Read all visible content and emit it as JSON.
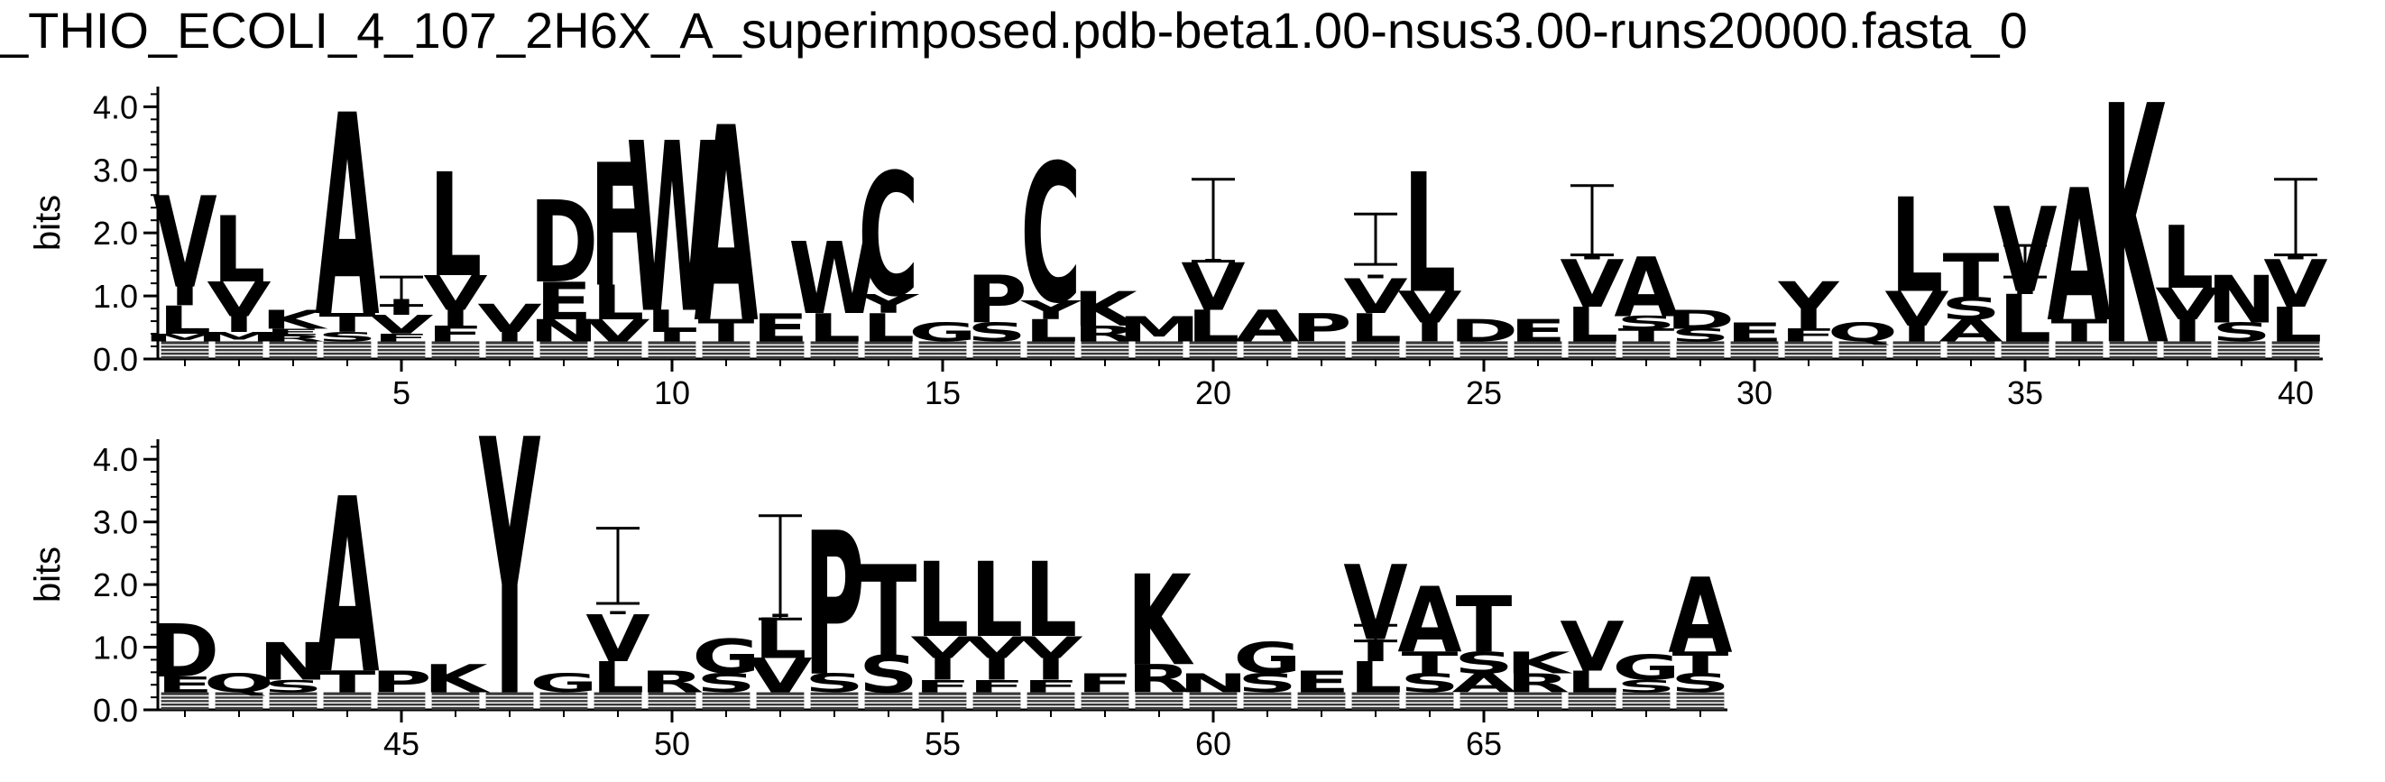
{
  "title": "_THIO_ECOLI_4_107_2H6X_A_superimposed.pdb-beta1.00-nsus3.00-runs20000.fasta_0",
  "chart_data": {
    "type": "sequence-logo",
    "title": "_THIO_ECOLI_4_107_2H6X_A_superimposed.pdb-beta1.00-nsus3.00-runs20000.fasta_0",
    "ylabel": "bits",
    "ylim": [
      0,
      4.32
    ],
    "yticks": [
      "0.0",
      "1.0",
      "2.0",
      "3.0",
      "4.0"
    ],
    "grid": false,
    "panels": [
      {
        "x_range": [
          0.5,
          40.5
        ],
        "xticks": [
          5,
          10,
          15,
          20,
          25,
          30,
          35,
          40
        ],
        "first_position": 1,
        "last_position": 40
      },
      {
        "x_range": [
          40.5,
          80.5
        ],
        "xticks": [
          45,
          50,
          55,
          60,
          65
        ],
        "first_position": 41,
        "last_position": 69
      }
    ],
    "positions": [
      {
        "pos": 1,
        "stack": [
          [
            "M",
            0.12
          ],
          [
            "L",
            0.45
          ],
          [
            "I",
            0.3
          ],
          [
            "V",
            1.45
          ]
        ],
        "error": null
      },
      {
        "pos": 2,
        "stack": [
          [
            "M",
            0.15
          ],
          [
            "I",
            0.25
          ],
          [
            "V",
            0.55
          ],
          [
            "L",
            1.05
          ]
        ],
        "error": null
      },
      {
        "pos": 3,
        "stack": [
          [
            "R",
            0.1
          ],
          [
            "E",
            0.1
          ],
          [
            "K",
            0.3
          ]
        ],
        "error": null
      },
      {
        "pos": 4,
        "stack": [
          [
            "S",
            0.15
          ],
          [
            "T",
            0.3
          ],
          [
            "A",
            3.2
          ]
        ],
        "error": null
      },
      {
        "pos": 5,
        "stack": [
          [
            "F",
            0.12
          ],
          [
            "V",
            0.3
          ],
          [
            "I",
            0.25
          ]
        ],
        "error": [
          0.85,
          1.3
        ]
      },
      {
        "pos": 6,
        "stack": [
          [
            "F",
            0.25
          ],
          [
            "I",
            0.25
          ],
          [
            "V",
            0.55
          ],
          [
            "L",
            1.65
          ]
        ],
        "error": null
      },
      {
        "pos": 7,
        "stack": [
          [
            "I",
            0.15
          ],
          [
            "V",
            0.45
          ]
        ],
        "error": null
      },
      {
        "pos": 8,
        "stack": [
          [
            "N",
            0.35
          ],
          [
            "E",
            0.6
          ],
          [
            "D",
            1.3
          ]
        ],
        "error": null
      },
      {
        "pos": 9,
        "stack": [
          [
            "V",
            0.35
          ],
          [
            "L",
            0.55
          ],
          [
            "F",
            1.95
          ]
        ],
        "error": null
      },
      {
        "pos": 10,
        "stack": [
          [
            "I",
            0.15
          ],
          [
            "L",
            0.35
          ],
          [
            "W",
            2.7
          ]
        ],
        "error": null
      },
      {
        "pos": 11,
        "stack": [
          [
            "T",
            0.35
          ],
          [
            "A",
            3.1
          ]
        ],
        "error": null
      },
      {
        "pos": 12,
        "stack": [
          [
            "E",
            0.45
          ]
        ],
        "error": null
      },
      {
        "pos": 13,
        "stack": [
          [
            "L",
            0.45
          ],
          [
            "W",
            1.15
          ]
        ],
        "error": null
      },
      {
        "pos": 14,
        "stack": [
          [
            "L",
            0.45
          ],
          [
            "Y",
            0.3
          ],
          [
            "C",
            1.95
          ]
        ],
        "error": null
      },
      {
        "pos": 15,
        "stack": [
          [
            "G",
            0.3
          ]
        ],
        "error": null
      },
      {
        "pos": 16,
        "stack": [
          [
            "S",
            0.3
          ],
          [
            "P",
            0.75
          ]
        ],
        "error": null
      },
      {
        "pos": 17,
        "stack": [
          [
            "L",
            0.35
          ],
          [
            "Y",
            0.3
          ],
          [
            "C",
            2.2
          ]
        ],
        "error": null
      },
      {
        "pos": 18,
        "stack": [
          [
            "R",
            0.25
          ],
          [
            "K",
            0.55
          ]
        ],
        "error": null
      },
      {
        "pos": 19,
        "stack": [
          [
            "M",
            0.4
          ]
        ],
        "error": null
      },
      {
        "pos": 20,
        "stack": [
          [
            "L",
            0.5
          ],
          [
            "V",
            0.75
          ],
          [
            "I",
            0.05
          ]
        ],
        "error": [
          1.55,
          2.85
        ]
      },
      {
        "pos": 21,
        "stack": [
          [
            "A",
            0.5
          ]
        ],
        "error": null
      },
      {
        "pos": 22,
        "stack": [
          [
            "P",
            0.45
          ]
        ],
        "error": null
      },
      {
        "pos": 23,
        "stack": [
          [
            "L",
            0.45
          ],
          [
            "V",
            0.55
          ],
          [
            "I",
            0.05
          ]
        ],
        "error": [
          1.5,
          2.3
        ]
      },
      {
        "pos": 24,
        "stack": [
          [
            "I",
            0.3
          ],
          [
            "V",
            0.5
          ],
          [
            "L",
            1.9
          ]
        ],
        "error": null
      },
      {
        "pos": 25,
        "stack": [
          [
            "D",
            0.35
          ]
        ],
        "error": null
      },
      {
        "pos": 26,
        "stack": [
          [
            "E",
            0.35
          ]
        ],
        "error": null
      },
      {
        "pos": 27,
        "stack": [
          [
            "L",
            0.55
          ],
          [
            "V",
            0.75
          ],
          [
            "I",
            0.05
          ]
        ],
        "error": [
          1.65,
          2.75
        ]
      },
      {
        "pos": 28,
        "stack": [
          [
            "T",
            0.2
          ],
          [
            "S",
            0.2
          ],
          [
            "A",
            0.95
          ]
        ],
        "error": null
      },
      {
        "pos": 29,
        "stack": [
          [
            "S",
            0.2
          ],
          [
            "D",
            0.3
          ]
        ],
        "error": null
      },
      {
        "pos": 30,
        "stack": [
          [
            "E",
            0.3
          ]
        ],
        "error": null
      },
      {
        "pos": 31,
        "stack": [
          [
            "F",
            0.2
          ],
          [
            "Y",
            0.75
          ]
        ],
        "error": null
      },
      {
        "pos": 32,
        "stack": [
          [
            "Q",
            0.3
          ]
        ],
        "error": null
      },
      {
        "pos": 33,
        "stack": [
          [
            "I",
            0.25
          ],
          [
            "V",
            0.55
          ],
          [
            "L",
            1.5
          ]
        ],
        "error": null
      },
      {
        "pos": 34,
        "stack": [
          [
            "A",
            0.35
          ],
          [
            "S",
            0.35
          ],
          [
            "T",
            0.7
          ]
        ],
        "error": null
      },
      {
        "pos": 35,
        "stack": [
          [
            "L",
            0.75
          ],
          [
            "I",
            0.05
          ],
          [
            "V",
            1.35
          ]
        ],
        "error": [
          1.3,
          1.8
        ]
      },
      {
        "pos": 36,
        "stack": [
          [
            "T",
            0.35
          ],
          [
            "A",
            2.1
          ]
        ],
        "error": null
      },
      {
        "pos": 37,
        "stack": [
          [
            "K",
            3.8
          ]
        ],
        "error": null
      },
      {
        "pos": 38,
        "stack": [
          [
            "I",
            0.35
          ],
          [
            "V",
            0.5
          ],
          [
            "L",
            1.0
          ]
        ],
        "error": null
      },
      {
        "pos": 39,
        "stack": [
          [
            "S",
            0.3
          ],
          [
            "N",
            0.75
          ]
        ],
        "error": null
      },
      {
        "pos": 40,
        "stack": [
          [
            "L",
            0.55
          ],
          [
            "V",
            0.75
          ],
          [
            "I",
            0.05
          ]
        ],
        "error": [
          1.65,
          2.85
        ]
      },
      {
        "pos": 41,
        "stack": [
          [
            "E",
            0.25
          ],
          [
            "D",
            0.85
          ]
        ],
        "error": null
      },
      {
        "pos": 42,
        "stack": [
          [
            "Q",
            0.3
          ]
        ],
        "error": null
      },
      {
        "pos": 43,
        "stack": [
          [
            "S",
            0.2
          ],
          [
            "N",
            0.6
          ]
        ],
        "error": null
      },
      {
        "pos": 44,
        "stack": [
          [
            "T",
            0.35
          ],
          [
            "A",
            2.8
          ]
        ],
        "error": null
      },
      {
        "pos": 45,
        "stack": [
          [
            "P",
            0.35
          ]
        ],
        "error": null
      },
      {
        "pos": 46,
        "stack": [
          [
            "K",
            0.45
          ]
        ],
        "error": null
      },
      {
        "pos": 47,
        "stack": [
          [
            "Y",
            4.1
          ]
        ],
        "error": null
      },
      {
        "pos": 48,
        "stack": [
          [
            "G",
            0.3
          ]
        ],
        "error": null
      },
      {
        "pos": 49,
        "stack": [
          [
            "L",
            0.5
          ],
          [
            "V",
            0.75
          ],
          [
            "I",
            0.05
          ]
        ],
        "error": [
          1.7,
          2.9
        ]
      },
      {
        "pos": 50,
        "stack": [
          [
            "R",
            0.35
          ]
        ],
        "error": null
      },
      {
        "pos": 51,
        "stack": [
          [
            "S",
            0.3
          ],
          [
            "G",
            0.55
          ]
        ],
        "error": null
      },
      {
        "pos": 52,
        "stack": [
          [
            "V",
            0.55
          ],
          [
            "L",
            0.65
          ],
          [
            "I",
            0.05
          ]
        ],
        "error": [
          1.45,
          3.1
        ]
      },
      {
        "pos": 53,
        "stack": [
          [
            "S",
            0.3
          ],
          [
            "P",
            2.3
          ]
        ],
        "error": null
      },
      {
        "pos": 54,
        "stack": [
          [
            "S",
            0.6
          ],
          [
            "T",
            1.45
          ]
        ],
        "error": null
      },
      {
        "pos": 55,
        "stack": [
          [
            "F",
            0.2
          ],
          [
            "I",
            0.35
          ],
          [
            "V",
            0.35
          ],
          [
            "L",
            1.2
          ]
        ],
        "error": null
      },
      {
        "pos": 56,
        "stack": [
          [
            "F",
            0.2
          ],
          [
            "I",
            0.35
          ],
          [
            "V",
            0.35
          ],
          [
            "L",
            1.2
          ]
        ],
        "error": null
      },
      {
        "pos": 57,
        "stack": [
          [
            "F",
            0.2
          ],
          [
            "I",
            0.35
          ],
          [
            "V",
            0.35
          ],
          [
            "L",
            1.2
          ]
        ],
        "error": null
      },
      {
        "pos": 58,
        "stack": [
          [
            "F",
            0.3
          ]
        ],
        "error": null
      },
      {
        "pos": 59,
        "stack": [
          [
            "R",
            0.45
          ],
          [
            "K",
            1.45
          ]
        ],
        "error": null
      },
      {
        "pos": 60,
        "stack": [
          [
            "N",
            0.3
          ]
        ],
        "error": null
      },
      {
        "pos": 61,
        "stack": [
          [
            "S",
            0.3
          ],
          [
            "G",
            0.5
          ]
        ],
        "error": null
      },
      {
        "pos": 62,
        "stack": [
          [
            "E",
            0.35
          ]
        ],
        "error": null
      },
      {
        "pos": 63,
        "stack": [
          [
            "L",
            0.5
          ],
          [
            "I",
            0.35
          ],
          [
            "V",
            1.2
          ]
        ],
        "error": [
          1.1,
          1.35
        ]
      },
      {
        "pos": 64,
        "stack": [
          [
            "S",
            0.3
          ],
          [
            "T",
            0.35
          ],
          [
            "A",
            1.05
          ]
        ],
        "error": null
      },
      {
        "pos": 65,
        "stack": [
          [
            "A",
            0.3
          ],
          [
            "S",
            0.35
          ],
          [
            "T",
            0.9
          ]
        ],
        "error": null
      },
      {
        "pos": 66,
        "stack": [
          [
            "R",
            0.3
          ],
          [
            "K",
            0.35
          ]
        ],
        "error": null
      },
      {
        "pos": 67,
        "stack": [
          [
            "L",
            0.35
          ],
          [
            "V",
            0.8
          ]
        ],
        "error": null
      },
      {
        "pos": 68,
        "stack": [
          [
            "S",
            0.2
          ],
          [
            "G",
            0.4
          ]
        ],
        "error": null
      },
      {
        "pos": 69,
        "stack": [
          [
            "S",
            0.3
          ],
          [
            "T",
            0.35
          ],
          [
            "A",
            1.2
          ]
        ],
        "error": null
      }
    ]
  }
}
